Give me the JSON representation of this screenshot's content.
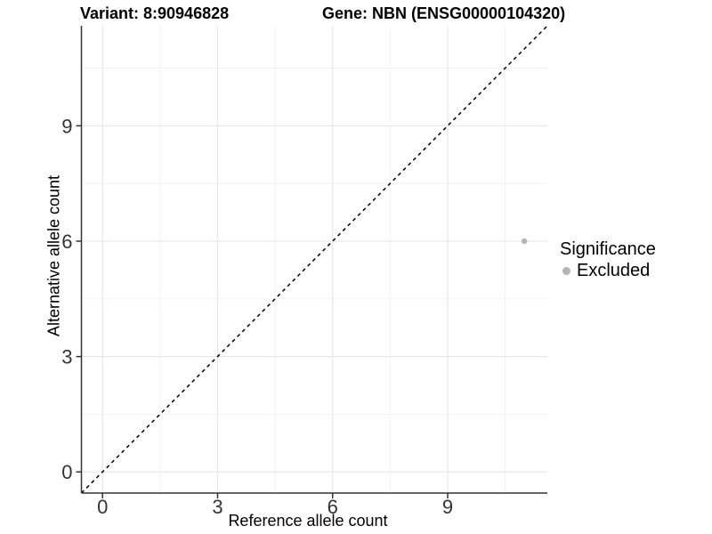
{
  "titles": {
    "left": "Variant: 8:90946828",
    "right": "Gene: NBN (ENSG00000104320)"
  },
  "chart_data": {
    "type": "scatter",
    "title": "Variant: 8:90946828   Gene: NBN (ENSG00000104320)",
    "xlabel": "Reference allele count",
    "ylabel": "Alternative allele count",
    "xlim": [
      -0.55,
      11.6
    ],
    "ylim": [
      -0.55,
      11.6
    ],
    "x_ticks": [
      0,
      3,
      6,
      9
    ],
    "y_ticks": [
      0,
      3,
      6,
      9
    ],
    "x_minor_ticks": [
      1.5,
      4.5,
      7.5,
      10.5
    ],
    "y_minor_ticks": [
      1.5,
      4.5,
      7.5,
      10.5
    ],
    "grid": "major+minor",
    "legend_position": "right",
    "reference_line": {
      "name": "identity-line y=x",
      "style": "dashed",
      "color": "#000000"
    },
    "series": [
      {
        "name": "Excluded",
        "marker": "circle",
        "color": "#b5b5b5",
        "points": [
          {
            "x": 11,
            "y": 6
          }
        ]
      }
    ],
    "legend": {
      "title": "Significance",
      "items": [
        {
          "label": "Excluded",
          "color": "#b5b5b5"
        }
      ]
    }
  },
  "colors": {
    "background": "#ffffff",
    "grid_major": "#e6e6e6",
    "grid_minor": "#f2f2f2",
    "axis": "#333333",
    "tick_text": "#333333",
    "point": "#b5b5b5",
    "reference_line": "#000000"
  }
}
